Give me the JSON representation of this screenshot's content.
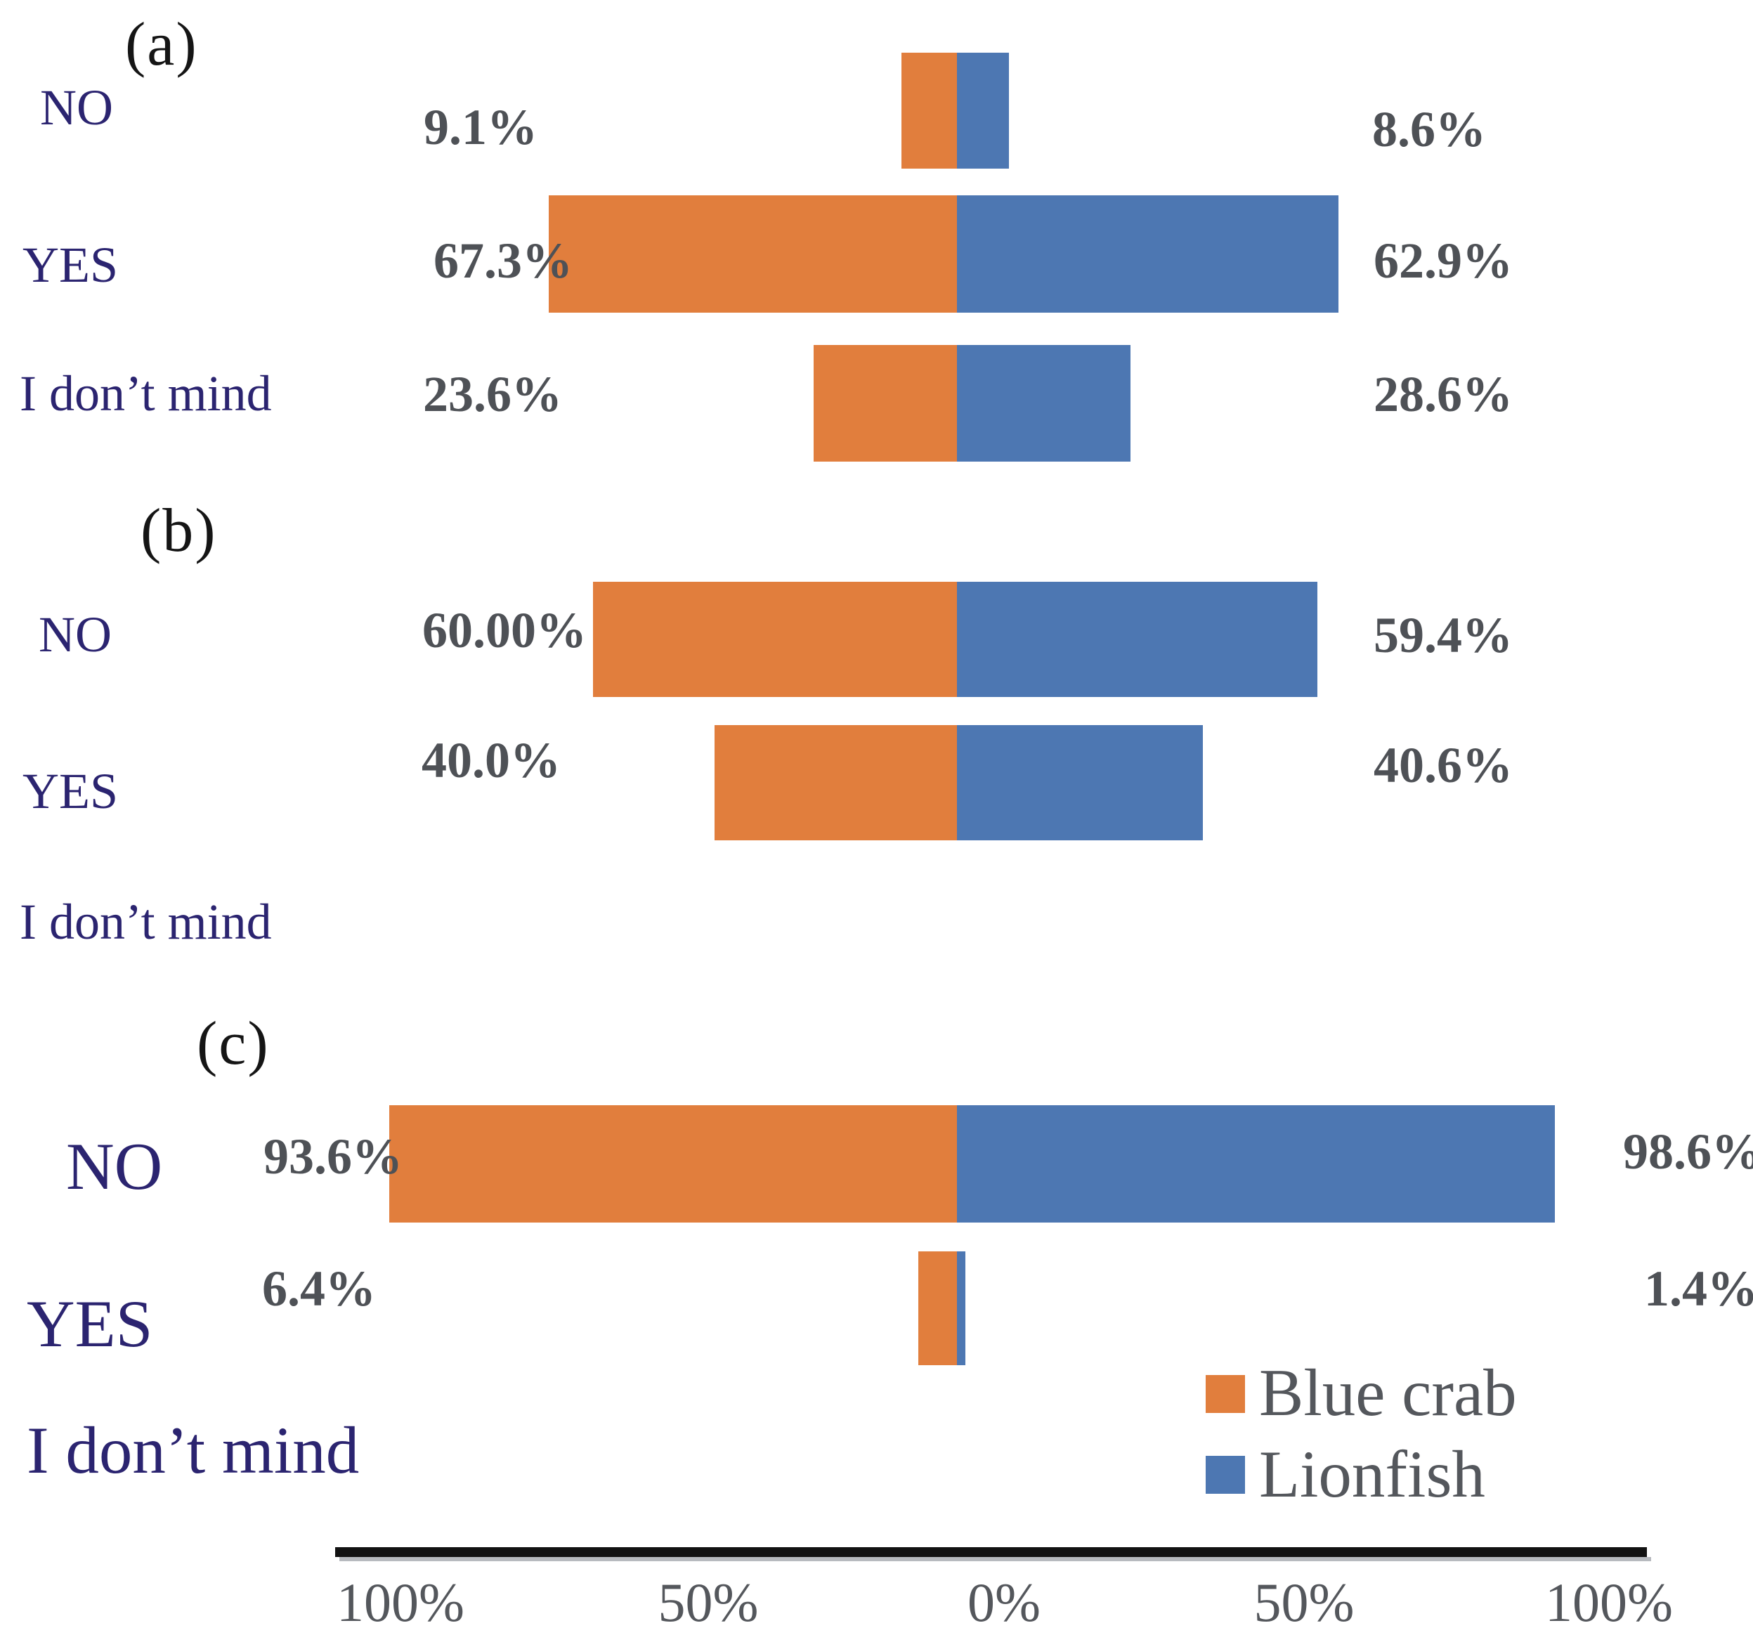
{
  "colors": {
    "blue_crab": "#e17e3d",
    "lionfish": "#4d77b2",
    "category_label": "#2b2470",
    "value_label": "#4e5156",
    "tick_label": "#54575c",
    "panel_letter": "#151515",
    "axis_line": "#121212",
    "background": "#ffffff"
  },
  "panels": [
    {
      "letter": "(a)",
      "rows": [
        {
          "category": "NO",
          "left_value": "9.1%",
          "right_value": "8.6%"
        },
        {
          "category": "YES",
          "left_value": "67.3%",
          "right_value": "62.9%"
        },
        {
          "category": "I don’t mind",
          "left_value": "23.6%",
          "right_value": "28.6%"
        }
      ]
    },
    {
      "letter": "(b)",
      "rows": [
        {
          "category": "NO",
          "left_value": "60.00%",
          "right_value": "59.4%"
        },
        {
          "category": "YES",
          "left_value": "40.0%",
          "right_value": "40.6%"
        },
        {
          "category": "I don’t mind",
          "left_value": "",
          "right_value": ""
        }
      ]
    },
    {
      "letter": "(c)",
      "rows": [
        {
          "category": "NO",
          "left_value": "93.6%",
          "right_value": "98.6%"
        },
        {
          "category": "YES",
          "left_value": "6.4%",
          "right_value": "1.4%"
        },
        {
          "category": "I don’t mind",
          "left_value": "",
          "right_value": ""
        }
      ]
    }
  ],
  "legend": {
    "items": [
      {
        "label": "Blue crab",
        "color_key": "blue_crab"
      },
      {
        "label": "Lionfish",
        "color_key": "lionfish"
      }
    ]
  },
  "axis": {
    "ticks": [
      "100%",
      "50%",
      "0%",
      "50%",
      "100%"
    ]
  },
  "chart_data": {
    "type": "bar",
    "orientation": "horizontal-diverging",
    "legend": [
      "Blue crab",
      "Lionfish"
    ],
    "legend_position": "bottom-right",
    "x_axis": {
      "tick_labels": [
        "100%",
        "50%",
        "0%",
        "50%",
        "100%"
      ],
      "range_pct_from_center": [
        -100,
        100
      ]
    },
    "panels": [
      {
        "label": "(a)",
        "categories": [
          "NO",
          "YES",
          "I don't mind"
        ],
        "series": [
          {
            "name": "Blue crab",
            "side": "left",
            "values": [
              9.1,
              67.3,
              23.6
            ]
          },
          {
            "name": "Lionfish",
            "side": "right",
            "values": [
              8.6,
              62.9,
              28.6
            ]
          }
        ]
      },
      {
        "label": "(b)",
        "categories": [
          "NO",
          "YES",
          "I don't mind"
        ],
        "series": [
          {
            "name": "Blue crab",
            "side": "left",
            "values": [
              60.0,
              40.0,
              null
            ]
          },
          {
            "name": "Lionfish",
            "side": "right",
            "values": [
              59.4,
              40.6,
              null
            ]
          }
        ]
      },
      {
        "label": "(c)",
        "categories": [
          "NO",
          "YES",
          "I don't mind"
        ],
        "series": [
          {
            "name": "Blue crab",
            "side": "left",
            "values": [
              93.6,
              6.4,
              null
            ]
          },
          {
            "name": "Lionfish",
            "side": "right",
            "values": [
              98.6,
              1.4,
              null
            ]
          }
        ]
      }
    ]
  }
}
